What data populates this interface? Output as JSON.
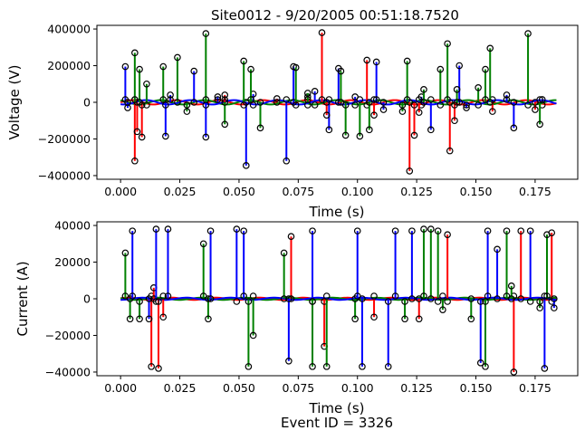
{
  "title": "Site0012 - 9/20/2005 00:51:18.7520",
  "footer": "Event ID = 3326",
  "colors": {
    "phase_a": "#ff0000",
    "phase_b": "#008000",
    "phase_c": "#0000ff",
    "marker": "#000000"
  },
  "chart_data": [
    {
      "type": "line",
      "xlabel": "Time (s)",
      "ylabel": "Voltage (V)",
      "xlim": [
        -0.01,
        0.193
      ],
      "ylim": [
        -420000,
        420000
      ],
      "xticks": [
        0.0,
        0.025,
        0.05,
        0.075,
        0.1,
        0.125,
        0.15,
        0.175
      ],
      "xtick_labels": [
        "0.000",
        "0.025",
        "0.050",
        "0.075",
        "0.100",
        "0.125",
        "0.150",
        "0.175"
      ],
      "yticks": [
        -400000,
        -200000,
        0,
        200000,
        400000
      ],
      "ytick_labels": [
        "−400000",
        "−200000",
        "0",
        "200000",
        "400000"
      ],
      "spikes": [
        {
          "color": "#0000ff",
          "points": [
            [
              0.002,
              195000
            ],
            [
              0.003,
              -30000
            ],
            [
              0.019,
              -185000
            ],
            [
              0.021,
              40000
            ],
            [
              0.031,
              170000
            ],
            [
              0.036,
              -190000
            ],
            [
              0.041,
              30000
            ],
            [
              0.053,
              -345000
            ],
            [
              0.056,
              45000
            ],
            [
              0.07,
              -320000
            ],
            [
              0.073,
              195000
            ],
            [
              0.082,
              60000
            ],
            [
              0.088,
              -150000
            ],
            [
              0.092,
              185000
            ],
            [
              0.099,
              30000
            ],
            [
              0.108,
              220000
            ],
            [
              0.111,
              -40000
            ],
            [
              0.127,
              30000
            ],
            [
              0.131,
              -150000
            ],
            [
              0.143,
              200000
            ],
            [
              0.146,
              -30000
            ],
            [
              0.163,
              40000
            ],
            [
              0.166,
              -140000
            ],
            [
              0.178,
              15000
            ]
          ]
        },
        {
          "color": "#ff0000",
          "points": [
            [
              0.006,
              -320000
            ],
            [
              0.007,
              -160000
            ],
            [
              0.009,
              -190000
            ],
            [
              0.044,
              40000
            ],
            [
              0.066,
              20000
            ],
            [
              0.079,
              30000
            ],
            [
              0.085,
              380000
            ],
            [
              0.087,
              -70000
            ],
            [
              0.104,
              230000
            ],
            [
              0.107,
              -70000
            ],
            [
              0.122,
              -375000
            ],
            [
              0.124,
              -180000
            ],
            [
              0.126,
              -55000
            ],
            [
              0.139,
              -265000
            ],
            [
              0.141,
              -100000
            ],
            [
              0.157,
              -50000
            ],
            [
              0.175,
              -40000
            ]
          ]
        },
        {
          "color": "#008000",
          "points": [
            [
              0.006,
              270000
            ],
            [
              0.008,
              180000
            ],
            [
              0.011,
              100000
            ],
            [
              0.018,
              195000
            ],
            [
              0.024,
              245000
            ],
            [
              0.028,
              -50000
            ],
            [
              0.036,
              375000
            ],
            [
              0.044,
              -120000
            ],
            [
              0.052,
              225000
            ],
            [
              0.055,
              180000
            ],
            [
              0.059,
              -140000
            ],
            [
              0.074,
              190000
            ],
            [
              0.079,
              50000
            ],
            [
              0.093,
              170000
            ],
            [
              0.095,
              -180000
            ],
            [
              0.101,
              -185000
            ],
            [
              0.105,
              -150000
            ],
            [
              0.119,
              -50000
            ],
            [
              0.121,
              225000
            ],
            [
              0.128,
              70000
            ],
            [
              0.135,
              180000
            ],
            [
              0.138,
              320000
            ],
            [
              0.142,
              70000
            ],
            [
              0.151,
              80000
            ],
            [
              0.154,
              180000
            ],
            [
              0.156,
              295000
            ],
            [
              0.172,
              375000
            ],
            [
              0.177,
              -120000
            ]
          ]
        }
      ],
      "base_waves": [
        {
          "color": "#ff0000",
          "amplitude": 12000,
          "phase": 0.0
        },
        {
          "color": "#008000",
          "amplitude": 12000,
          "phase": 2.094
        },
        {
          "color": "#0000ff",
          "amplitude": 12000,
          "phase": 4.189
        }
      ]
    },
    {
      "type": "line",
      "xlabel": "Time (s)",
      "ylabel": "Current (A)",
      "xlim": [
        -0.01,
        0.193
      ],
      "ylim": [
        -42000,
        42000
      ],
      "xticks": [
        0.0,
        0.025,
        0.05,
        0.075,
        0.1,
        0.125,
        0.15,
        0.175
      ],
      "xtick_labels": [
        "0.000",
        "0.025",
        "0.050",
        "0.075",
        "0.100",
        "0.125",
        "0.150",
        "0.175"
      ],
      "yticks": [
        -40000,
        -20000,
        0,
        20000,
        40000
      ],
      "ytick_labels": [
        "−40000",
        "−20000",
        "0",
        "20000",
        "40000"
      ],
      "spikes": [
        {
          "color": "#ff0000",
          "points": [
            [
              0.013,
              -37000
            ],
            [
              0.014,
              6000
            ],
            [
              0.016,
              -38000
            ],
            [
              0.018,
              -10000
            ],
            [
              0.072,
              34000
            ],
            [
              0.086,
              -26000
            ],
            [
              0.107,
              -10000
            ],
            [
              0.126,
              -11000
            ],
            [
              0.138,
              35000
            ],
            [
              0.166,
              -40000
            ],
            [
              0.169,
              37000
            ],
            [
              0.182,
              36000
            ]
          ]
        },
        {
          "color": "#008000",
          "points": [
            [
              0.002,
              25000
            ],
            [
              0.004,
              -11000
            ],
            [
              0.008,
              -11000
            ],
            [
              0.035,
              30000
            ],
            [
              0.037,
              -11000
            ],
            [
              0.054,
              -37000
            ],
            [
              0.056,
              -20000
            ],
            [
              0.069,
              25000
            ],
            [
              0.081,
              -37000
            ],
            [
              0.087,
              -37000
            ],
            [
              0.099,
              -11000
            ],
            [
              0.12,
              -11000
            ],
            [
              0.128,
              38000
            ],
            [
              0.131,
              38000
            ],
            [
              0.134,
              37000
            ],
            [
              0.136,
              -6000
            ],
            [
              0.148,
              -11000
            ],
            [
              0.154,
              -37000
            ],
            [
              0.163,
              37000
            ],
            [
              0.165,
              7000
            ],
            [
              0.177,
              -5000
            ],
            [
              0.18,
              35000
            ]
          ]
        },
        {
          "color": "#0000ff",
          "points": [
            [
              0.005,
              37000
            ],
            [
              0.012,
              -11000
            ],
            [
              0.015,
              38000
            ],
            [
              0.02,
              38000
            ],
            [
              0.038,
              37000
            ],
            [
              0.049,
              38000
            ],
            [
              0.052,
              37000
            ],
            [
              0.071,
              -34000
            ],
            [
              0.081,
              37000
            ],
            [
              0.1,
              37000
            ],
            [
              0.102,
              -37000
            ],
            [
              0.113,
              -37000
            ],
            [
              0.116,
              37000
            ],
            [
              0.123,
              37000
            ],
            [
              0.152,
              -35000
            ],
            [
              0.155,
              37000
            ],
            [
              0.159,
              27000
            ],
            [
              0.173,
              37000
            ],
            [
              0.179,
              -38000
            ],
            [
              0.183,
              -5000
            ]
          ]
        }
      ],
      "base_waves": [
        {
          "color": "#ff0000",
          "amplitude": 600,
          "phase": 0.5
        },
        {
          "color": "#008000",
          "amplitude": 600,
          "phase": 2.6
        },
        {
          "color": "#0000ff",
          "amplitude": 600,
          "phase": 4.7
        }
      ]
    }
  ]
}
